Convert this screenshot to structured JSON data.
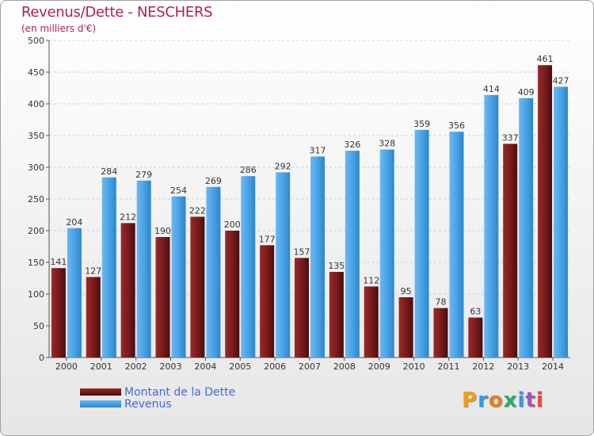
{
  "title": "Revenus/Dette - NESCHERS",
  "subtitle": "(en milliers d'€)",
  "logo": [
    "P",
    "r",
    "o",
    "x",
    "i",
    "t",
    "i"
  ],
  "colors": {
    "title": "#b01e58",
    "dette": "#7a1c1c",
    "revenus": "#4aa3e6",
    "legend_text": "#4169e1",
    "logo": [
      "#f39c12",
      "#3498db",
      "#e67e22",
      "#27ae60",
      "#3498db",
      "#9b59b6",
      "#e74c3c"
    ]
  },
  "chart_data": {
    "type": "bar",
    "categories": [
      "2000",
      "2001",
      "2002",
      "2003",
      "2004",
      "2005",
      "2006",
      "2007",
      "2008",
      "2009",
      "2010",
      "2011",
      "2012",
      "2013",
      "2014"
    ],
    "series": [
      {
        "name": "Montant de la Dette",
        "values": [
          141,
          127,
          212,
          190,
          222,
          200,
          177,
          157,
          135,
          112,
          95,
          78,
          63,
          337,
          461
        ]
      },
      {
        "name": "Revenus",
        "values": [
          204,
          284,
          279,
          254,
          269,
          286,
          292,
          317,
          326,
          328,
          359,
          356,
          414,
          409,
          427
        ]
      }
    ],
    "ylim": [
      0,
      500
    ],
    "yticks": [
      "0",
      "50",
      "100",
      "150",
      "200",
      "250",
      "300",
      "350",
      "400",
      "450",
      "500"
    ],
    "grid": true,
    "legend_position": "bottom-left"
  }
}
